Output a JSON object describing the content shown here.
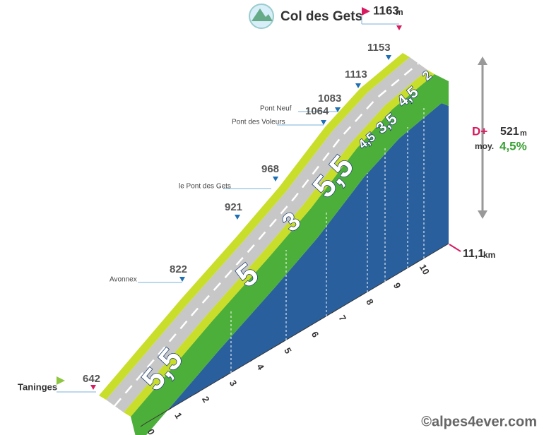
{
  "summit": {
    "name": "Col des Gets",
    "altitude": "1163",
    "unit": "m"
  },
  "start": {
    "name": "Taninges",
    "altitude": "642"
  },
  "waypoints": [
    {
      "altitude": "822",
      "place": "Avonnex"
    },
    {
      "altitude": "921"
    },
    {
      "altitude": "968",
      "place": "le Pont des Gets"
    },
    {
      "altitude": "1064",
      "place": "Pont des Voleurs"
    },
    {
      "altitude": "1083",
      "place": "Pont Neuf"
    },
    {
      "altitude": "1113"
    },
    {
      "altitude": "1153"
    }
  ],
  "gradients": [
    "5,5",
    "5",
    "3",
    "5,5",
    "4,5",
    "3,5",
    "4,5",
    "2"
  ],
  "km_ticks": [
    "0",
    "1",
    "2",
    "3",
    "4",
    "5",
    "6",
    "7",
    "8",
    "9",
    "10"
  ],
  "stats": {
    "elevation_label": "D+",
    "elevation_gain": "521",
    "elevation_unit": "m",
    "average_label": "moy.",
    "average_gradient": "4,5%",
    "distance": "11,1",
    "distance_unit": "km"
  },
  "credit": "©alpes4ever.com"
}
